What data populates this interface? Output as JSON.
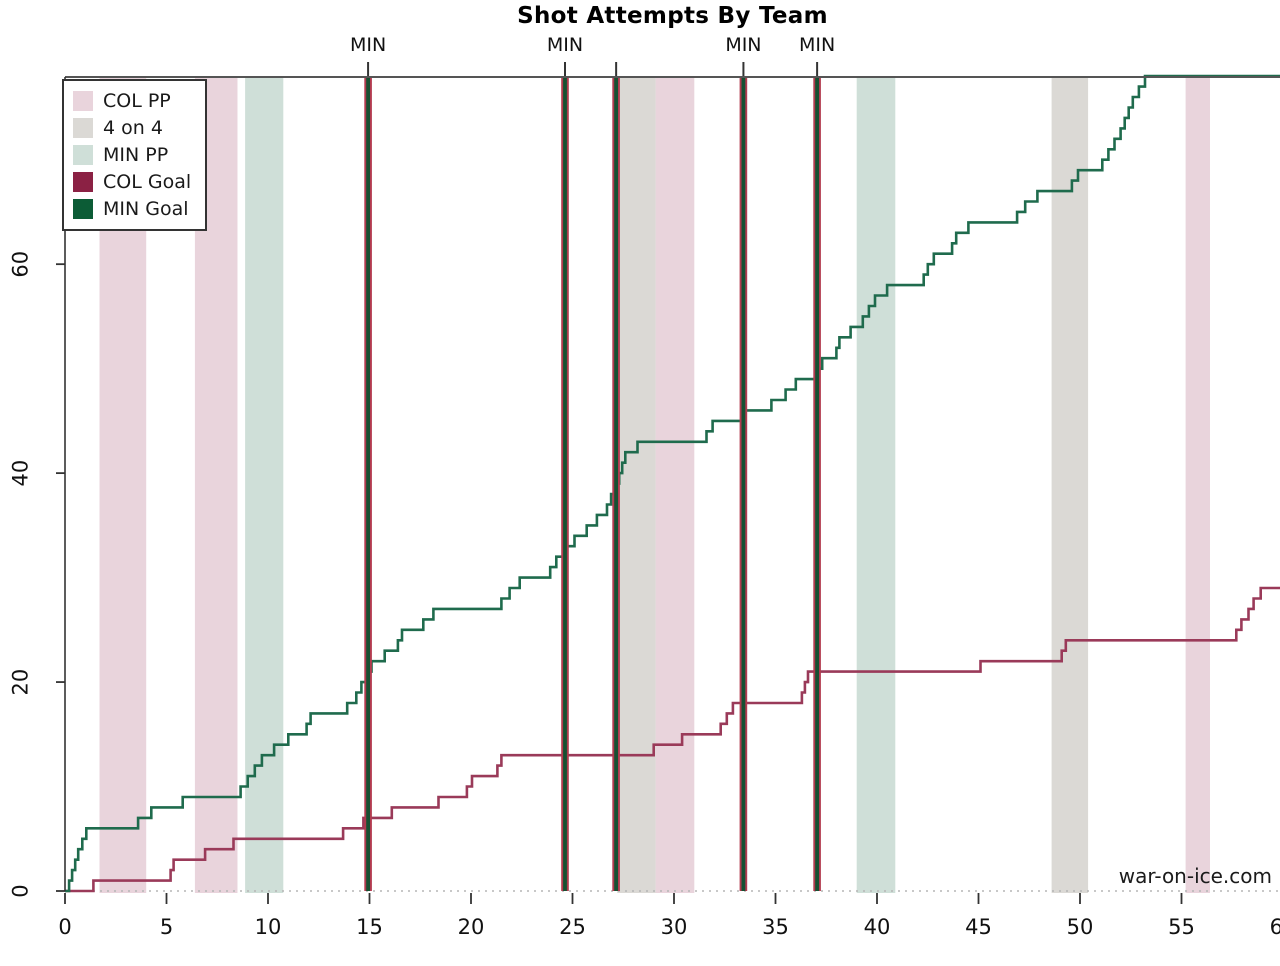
{
  "chart_data": {
    "type": "line",
    "subtype": "cumulative-step",
    "title": "Shot Attempts By Team",
    "watermark": "war-on-ice.com",
    "xlabel": "",
    "ylabel": "",
    "x_unit": "game minutes",
    "xlim": [
      0,
      60
    ],
    "ylim": [
      0,
      78
    ],
    "grid": "off",
    "x_ticks": [
      0,
      5,
      10,
      15,
      20,
      25,
      30,
      35,
      40,
      45,
      50,
      55,
      60
    ],
    "y_ticks": [
      0,
      20,
      40,
      60
    ],
    "legend_position": "top-left",
    "legend": [
      {
        "label": "COL PP",
        "color": "#e9d4dc"
      },
      {
        "label": "4 on 4",
        "color": "#dbd9d5"
      },
      {
        "label": "MIN PP",
        "color": "#cfdfd8"
      },
      {
        "label": "COL Goal",
        "color": "#8b2144"
      },
      {
        "label": "MIN Goal",
        "color": "#0c5c36"
      }
    ],
    "bands": [
      {
        "type": "COL PP",
        "start": 1.7,
        "end": 4.0
      },
      {
        "type": "COL PP",
        "start": 6.4,
        "end": 8.5
      },
      {
        "type": "MIN PP",
        "start": 8.87,
        "end": 10.75
      },
      {
        "type": "4 on 4",
        "start": 27.2,
        "end": 29.1
      },
      {
        "type": "COL PP",
        "start": 29.1,
        "end": 31.0
      },
      {
        "type": "MIN PP",
        "start": 39.0,
        "end": 40.9
      },
      {
        "type": "4 on 4",
        "start": 48.6,
        "end": 50.4
      },
      {
        "type": "COL PP",
        "start": 55.2,
        "end": 56.4
      }
    ],
    "goal_lines": [
      {
        "minute": 14.93,
        "team": "MIN",
        "label": "MIN"
      },
      {
        "minute": 24.63,
        "team": "MIN",
        "label": "MIN"
      },
      {
        "minute": 27.15,
        "team": "MIN",
        "label": ""
      },
      {
        "minute": 33.42,
        "team": "MIN",
        "label": "MIN"
      },
      {
        "minute": 37.05,
        "team": "MIN",
        "label": "MIN"
      }
    ],
    "series": [
      {
        "name": "MIN",
        "color": "#1f6b4d",
        "final_value": 78,
        "points": [
          [
            0,
            0
          ],
          [
            0.2,
            1
          ],
          [
            0.35,
            2
          ],
          [
            0.5,
            3
          ],
          [
            0.65,
            4
          ],
          [
            0.85,
            5
          ],
          [
            1.05,
            6
          ],
          [
            3.6,
            7
          ],
          [
            4.25,
            8
          ],
          [
            5.8,
            9
          ],
          [
            8.65,
            10
          ],
          [
            9.0,
            11
          ],
          [
            9.35,
            12
          ],
          [
            9.7,
            13
          ],
          [
            10.3,
            14
          ],
          [
            11.0,
            15
          ],
          [
            11.9,
            16
          ],
          [
            12.1,
            17
          ],
          [
            13.9,
            18
          ],
          [
            14.35,
            19
          ],
          [
            14.6,
            20
          ],
          [
            14.93,
            21
          ],
          [
            15.1,
            22
          ],
          [
            15.75,
            23
          ],
          [
            16.4,
            24
          ],
          [
            16.6,
            25
          ],
          [
            17.65,
            26
          ],
          [
            18.15,
            27
          ],
          [
            21.5,
            28
          ],
          [
            21.9,
            29
          ],
          [
            22.4,
            30
          ],
          [
            23.9,
            31
          ],
          [
            24.2,
            32
          ],
          [
            24.63,
            33
          ],
          [
            25.1,
            34
          ],
          [
            25.7,
            35
          ],
          [
            26.2,
            36
          ],
          [
            26.7,
            37
          ],
          [
            26.9,
            38
          ],
          [
            27.15,
            39
          ],
          [
            27.3,
            40
          ],
          [
            27.45,
            41
          ],
          [
            27.6,
            42
          ],
          [
            28.2,
            43
          ],
          [
            31.6,
            44
          ],
          [
            31.9,
            45
          ],
          [
            33.42,
            46
          ],
          [
            34.8,
            47
          ],
          [
            35.5,
            48
          ],
          [
            36.0,
            49
          ],
          [
            37.05,
            50
          ],
          [
            37.3,
            51
          ],
          [
            38.0,
            52
          ],
          [
            38.15,
            53
          ],
          [
            38.7,
            54
          ],
          [
            39.3,
            55
          ],
          [
            39.6,
            56
          ],
          [
            39.9,
            57
          ],
          [
            40.5,
            58
          ],
          [
            42.3,
            59
          ],
          [
            42.5,
            60
          ],
          [
            42.8,
            61
          ],
          [
            43.7,
            62
          ],
          [
            43.9,
            63
          ],
          [
            44.5,
            64
          ],
          [
            46.9,
            65
          ],
          [
            47.3,
            66
          ],
          [
            47.9,
            67
          ],
          [
            49.6,
            68
          ],
          [
            49.9,
            69
          ],
          [
            51.1,
            70
          ],
          [
            51.4,
            71
          ],
          [
            51.7,
            72
          ],
          [
            52.0,
            73
          ],
          [
            52.2,
            74
          ],
          [
            52.4,
            75
          ],
          [
            52.6,
            76
          ],
          [
            52.9,
            77
          ],
          [
            53.2,
            78
          ],
          [
            60,
            78
          ]
        ]
      },
      {
        "name": "COL",
        "color": "#9a3a59",
        "final_value": 29,
        "points": [
          [
            0,
            0
          ],
          [
            1.4,
            1
          ],
          [
            5.2,
            2
          ],
          [
            5.35,
            3
          ],
          [
            6.9,
            4
          ],
          [
            8.3,
            5
          ],
          [
            13.7,
            6
          ],
          [
            14.7,
            7
          ],
          [
            16.1,
            8
          ],
          [
            18.4,
            9
          ],
          [
            19.8,
            10
          ],
          [
            20.05,
            11
          ],
          [
            21.3,
            12
          ],
          [
            21.5,
            13
          ],
          [
            29.0,
            14
          ],
          [
            30.4,
            15
          ],
          [
            32.3,
            16
          ],
          [
            32.6,
            17
          ],
          [
            32.9,
            18
          ],
          [
            36.3,
            19
          ],
          [
            36.45,
            20
          ],
          [
            36.6,
            21
          ],
          [
            45.1,
            22
          ],
          [
            49.1,
            23
          ],
          [
            49.3,
            24
          ],
          [
            57.7,
            25
          ],
          [
            57.95,
            26
          ],
          [
            58.3,
            27
          ],
          [
            58.55,
            28
          ],
          [
            58.9,
            29
          ],
          [
            60,
            29
          ]
        ]
      }
    ],
    "colors": {
      "band_COL_PP": "#e9d4dc",
      "band_4on4": "#dbd9d5",
      "band_MIN_PP": "#cfdfd8",
      "goal_line_outer": "#b23b4f",
      "goal_line_inner": "#165032",
      "axis": "#333333",
      "tick_text": "#111111",
      "baseline_dotted": "#b5b5b5"
    }
  }
}
